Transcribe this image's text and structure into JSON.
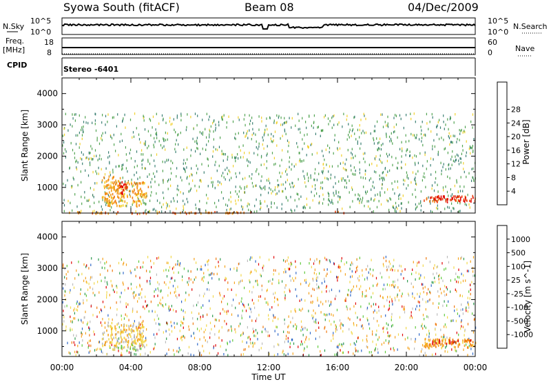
{
  "header": {
    "station": "Syowa South (fitACF)",
    "beam": "Beam 08",
    "date": "04/Dec/2009"
  },
  "top_panels": {
    "nsky_label": "N.Sky",
    "nsky_ticks": [
      "10^5",
      "10^0"
    ],
    "nsearch_label": "N.Search",
    "nsearch_ticks": [
      "10^5",
      "10^0"
    ],
    "freq_label_1": "Freq.",
    "freq_label_2": "[MHz]",
    "freq_ticks": [
      "18",
      "8"
    ],
    "nave_label": "Nave",
    "nave_ticks": [
      "60",
      "0"
    ],
    "cpid_label": "CPID",
    "cpid_value": "Stereo -6401"
  },
  "time_axis": {
    "label": "Time UT",
    "ticks": [
      "00:00",
      "04:00",
      "08:00",
      "12:00",
      "16:00",
      "20:00",
      "00:00"
    ]
  },
  "chart_data": [
    {
      "type": "heatmap",
      "panel": "power",
      "ylabel": "Slant Range [km]",
      "yticks": [
        1000,
        2000,
        3000,
        4000
      ],
      "ylim": [
        180,
        4500
      ],
      "xlim": [
        0,
        24
      ],
      "colorbar": {
        "label": "Power [dB]",
        "ticks": [
          "4",
          "8",
          "12",
          "16",
          "20",
          "24",
          "28"
        ],
        "colors": [
          "#0022ff",
          "#2255bb",
          "#3a7f73",
          "#52a352",
          "#f2d02a",
          "#f5a020",
          "#f07d12",
          "#e84010",
          "#e00000"
        ]
      },
      "regions": [
        {
          "t0": 2.3,
          "t1": 3.4,
          "r0": 600,
          "r1": 1400,
          "c": 5
        },
        {
          "t0": 3.0,
          "t1": 5.0,
          "r0": 700,
          "r1": 1200,
          "c": 5
        },
        {
          "t0": 3.3,
          "t1": 3.8,
          "r0": 800,
          "r1": 1200,
          "c": 8
        },
        {
          "t0": 2.5,
          "t1": 4.8,
          "r0": 420,
          "r1": 620,
          "c": 5
        },
        {
          "t0": 21.0,
          "t1": 24.0,
          "r0": 560,
          "r1": 760,
          "c": 7
        },
        {
          "t0": 21.5,
          "t1": 23.5,
          "r0": 650,
          "r1": 760,
          "c": 8
        },
        {
          "t0": 0.2,
          "t1": 11.0,
          "r0": 190,
          "r1": 250,
          "c": 6
        },
        {
          "t0": 15.8,
          "t1": 16.4,
          "r0": 190,
          "r1": 260,
          "c": 7
        }
      ]
    },
    {
      "type": "heatmap",
      "panel": "velocity",
      "ylabel": "Slant Range [km]",
      "yticks": [
        1000,
        2000,
        3000,
        4000
      ],
      "ylim": [
        180,
        4500
      ],
      "xlim": [
        0,
        24
      ],
      "colorbar": {
        "label": "Velocity [m s^-1]",
        "ticks": [
          "1000",
          "500",
          "100",
          "25",
          "-25",
          "-100",
          "-500",
          "-1000"
        ],
        "colors": [
          "#1a2fbf",
          "#2f68c8",
          "#2e9a4e",
          "#5fc93a",
          "#bcbcbc",
          "#f2d84a",
          "#f5a31e",
          "#f07a10",
          "#e00000"
        ]
      },
      "regions": [
        {
          "t0": 2.3,
          "t1": 4.8,
          "r0": 550,
          "r1": 1300,
          "c": 5
        },
        {
          "t0": 2.6,
          "t1": 4.8,
          "r0": 400,
          "r1": 600,
          "c": 4
        },
        {
          "t0": 21.0,
          "t1": 24.0,
          "r0": 480,
          "r1": 780,
          "c": 6
        },
        {
          "t0": 21.3,
          "t1": 23.8,
          "r0": 600,
          "r1": 760,
          "c": 7
        }
      ]
    }
  ]
}
